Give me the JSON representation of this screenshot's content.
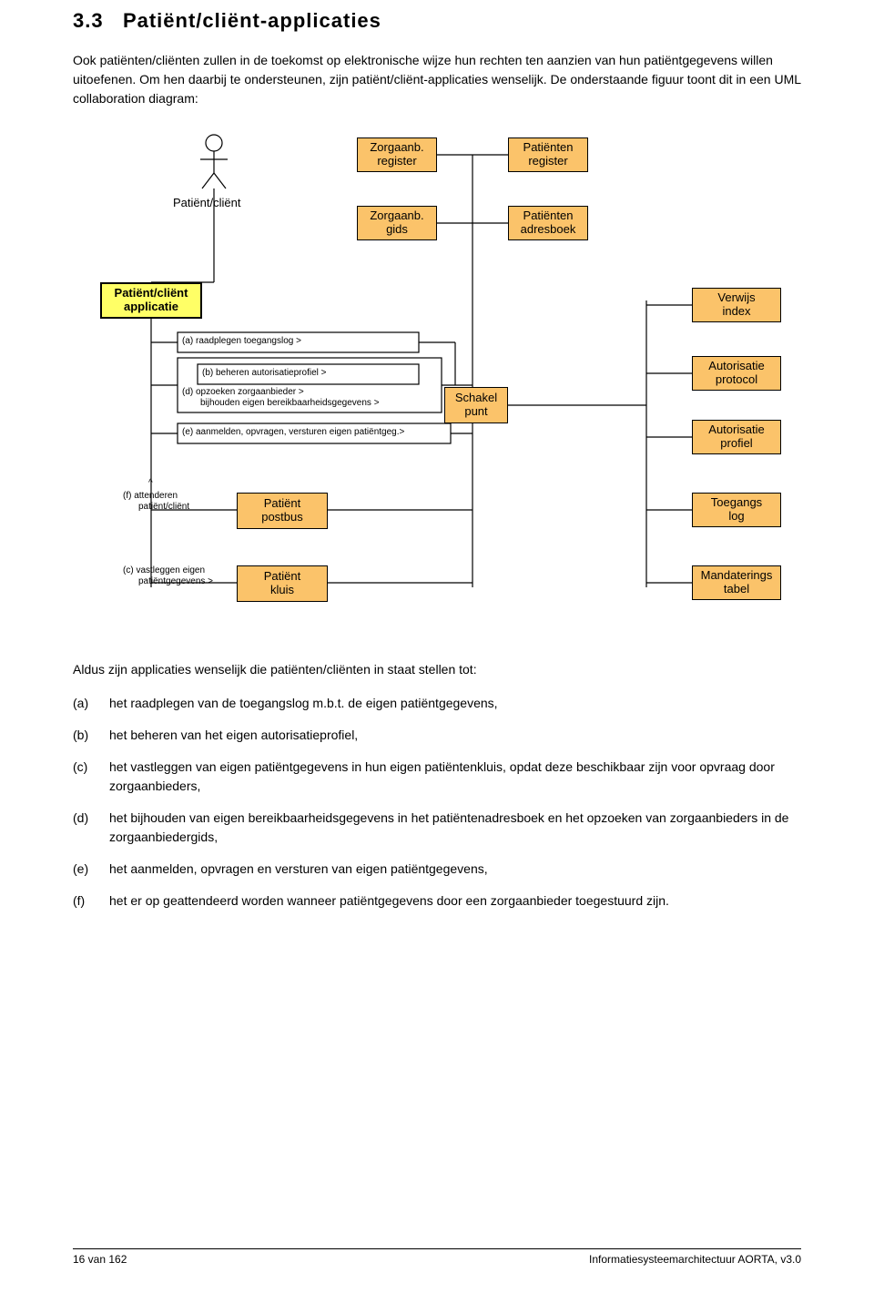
{
  "section_number": "3.3",
  "section_title": "Patiënt/cliënt-applicaties",
  "intro_p1": "Ook patiënten/cliënten zullen in de toekomst op elektronische wijze hun rechten ten aanzien van hun patiëntgegevens willen uitoefenen. Om hen daarbij te ondersteunen, zijn patiënt/cliënt-applicaties wenselijk. De onderstaande figuur toont dit in een UML collaboration diagram:",
  "diagram": {
    "colors": {
      "node_fill": "#fbc36a",
      "app_fill": "#ffff66",
      "stroke": "#000000",
      "background": "#ffffff"
    },
    "actor_label": "Patiënt/cliënt",
    "nodes": {
      "zorg_register": "Zorgaanb.\nregister",
      "pat_register": "Patiënten\nregister",
      "zorg_gids": "Zorgaanb.\ngids",
      "pat_adresboek": "Patiënten\nadresboek",
      "app": "Patiënt/cliënt\napplicatie",
      "verwijs": "Verwijs\nindex",
      "aut_protocol": "Autorisatie\nprotocol",
      "aut_profiel": "Autorisatie\nprofiel",
      "toegangslog": "Toegangs\nlog",
      "mandaat": "Mandaterings\ntabel",
      "schakelpunt": "Schakel\npunt",
      "postbus": "Patiënt\npostbus",
      "kluis": "Patiënt\nkluis"
    },
    "annotations": {
      "a": "(a)  raadplegen toegangslog >",
      "b": "(b)  beheren autorisatieprofiel >",
      "d": "(d)  opzoeken zorgaanbieder >",
      "d2": "bijhouden eigen bereikbaarheidsgegevens >",
      "e": "(e)  aanmelden, opvragen, versturen eigen patiëntgeg.>",
      "f_up": "^",
      "f": "(f) attenderen",
      "f2": "patiënt/cliënt",
      "c": "(c) vastleggen eigen",
      "c2": "patiëntgegevens >"
    }
  },
  "post_diagram_intro": "Aldus zijn applicaties wenselijk die patiënten/cliënten in staat stellen tot:",
  "items": [
    {
      "k": "(a)",
      "t": "het raadplegen van de toegangslog m.b.t. de eigen patiëntgegevens,"
    },
    {
      "k": "(b)",
      "t": "het beheren van het eigen autorisatieprofiel,"
    },
    {
      "k": "(c)",
      "t": "het vastleggen van eigen patiëntgegevens in hun eigen patiëntenkluis, opdat deze beschikbaar zijn voor opvraag door zorgaanbieders,"
    },
    {
      "k": "(d)",
      "t": "het bijhouden van eigen bereikbaarheidsgegevens in het patiëntenadresboek en het opzoeken van zorgaanbieders in de zorgaanbiedergids,"
    },
    {
      "k": "(e)",
      "t": "het aanmelden, opvragen en versturen van eigen patiëntgegevens,"
    },
    {
      "k": "(f)",
      "t": "het er op geattendeerd worden wanneer patiëntgegevens door een zorgaanbieder toegestuurd zijn."
    }
  ],
  "footer_left": "16 van 162",
  "footer_right": "Informatiesysteemarchitectuur AORTA, v3.0"
}
